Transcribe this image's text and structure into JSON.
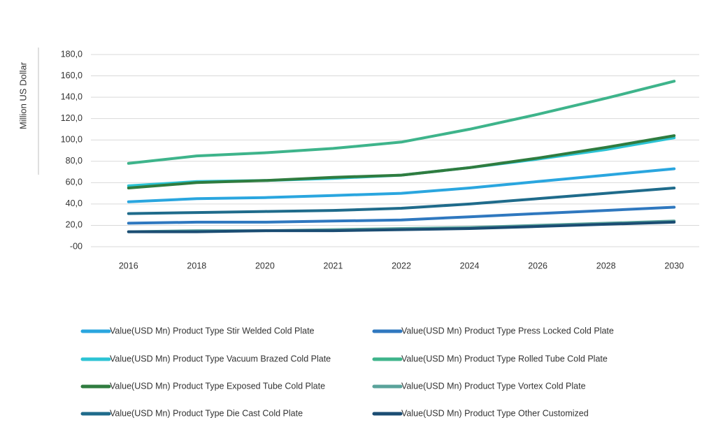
{
  "chart_data": {
    "type": "line",
    "y_label": "Million US Dollar",
    "categories": [
      "2016",
      "2018",
      "2020",
      "2021",
      "2022",
      "2024",
      "2026",
      "2028",
      "2030"
    ],
    "ylim": [
      0,
      180
    ],
    "yticks": [
      {
        "value": 0,
        "label": "-00"
      },
      {
        "value": 20,
        "label": "20,0"
      },
      {
        "value": 40,
        "label": "40,0"
      },
      {
        "value": 60,
        "label": "60,0"
      },
      {
        "value": 80,
        "label": "80,0"
      },
      {
        "value": 100,
        "label": "100,0"
      },
      {
        "value": 120,
        "label": "120,0"
      },
      {
        "value": 140,
        "label": "140,0"
      },
      {
        "value": 160,
        "label": "160,0"
      },
      {
        "value": 180,
        "label": "180,0"
      }
    ],
    "grid": true,
    "legend": "bottom",
    "series": [
      {
        "name": "Value(USD Mn) Product Type Stir Welded Cold Plate",
        "color": "#2aa6df",
        "values": [
          42,
          45,
          46,
          48,
          50,
          55,
          61,
          67,
          73
        ]
      },
      {
        "name": "Value(USD Mn) Product Type Press Locked Cold Plate",
        "color": "#2f78bf",
        "values": [
          22,
          23,
          23,
          24,
          25,
          28,
          31,
          34,
          37
        ]
      },
      {
        "name": "Value(USD Mn) Product Type Vacuum Brazed Cold Plate",
        "color": "#2cc3d4",
        "values": [
          57,
          61,
          62,
          64,
          67,
          74,
          82,
          91,
          102
        ]
      },
      {
        "name": "Value(USD Mn) Product Type Rolled Tube Cold Plate",
        "color": "#3eb48b",
        "values": [
          78,
          85,
          88,
          92,
          98,
          110,
          124,
          139,
          155
        ]
      },
      {
        "name": "Value(USD Mn) Product Type Exposed Tube Cold Plate",
        "color": "#2f7c3f",
        "values": [
          55,
          60,
          62,
          65,
          67,
          74,
          83,
          93,
          104
        ]
      },
      {
        "name": "Value(USD Mn) Product Type Vortex Cold Plate",
        "color": "#5aa39b",
        "values": [
          14,
          15,
          15,
          16,
          17,
          18,
          20,
          22,
          24
        ]
      },
      {
        "name": "Value(USD Mn) Product Type Die Cast Cold Plate",
        "color": "#1f6b8b",
        "values": [
          31,
          32,
          33,
          34,
          36,
          40,
          45,
          50,
          55
        ]
      },
      {
        "name": "Value(USD Mn) Product Type Other Customized",
        "color": "#1b4d73",
        "values": [
          14,
          14,
          15,
          15,
          16,
          17,
          19,
          21,
          23
        ]
      }
    ]
  }
}
